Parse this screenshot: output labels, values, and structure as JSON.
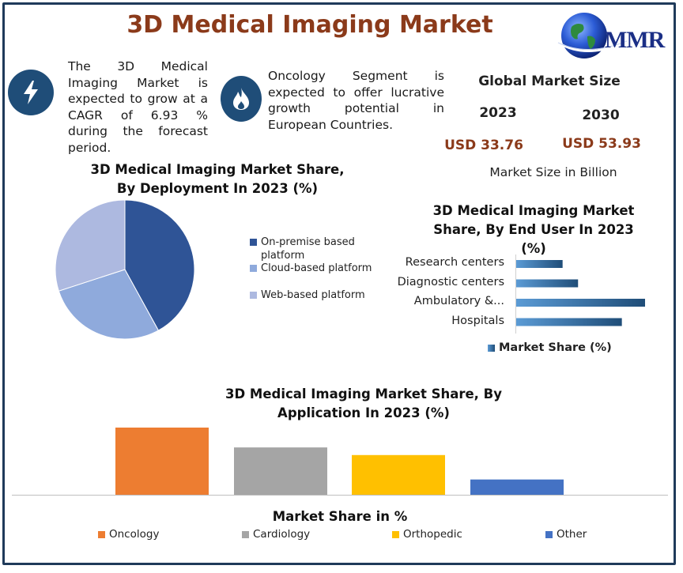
{
  "header": {
    "title": "3D Medical Imaging Market",
    "logo_text": "MMR"
  },
  "facts": [
    {
      "icon": "lightning-icon",
      "text": "The 3D Medical Imaging Market is expected to grow at a CAGR of 6.93 % during the forecast period."
    },
    {
      "icon": "flame-icon",
      "text": "Oncology Segment is expected to offer lucrative growth potential in European Countries."
    }
  ],
  "global_market": {
    "heading": "Global Market Size",
    "year_start": "2023",
    "year_end": "2030",
    "value_start": "USD 33.76",
    "value_end": "USD 53.93",
    "unit": "Market Size in Billion"
  },
  "colors": {
    "title": "#8b3a1a",
    "navy": "#1f4d78",
    "frame": "#1f3a5a"
  },
  "chart_data": [
    {
      "type": "pie",
      "title": "3D Medical Imaging Market Share, By Deployment In 2023 (%)",
      "categories": [
        "On-premise based platform",
        "Cloud-based platform",
        "Web-based platform"
      ],
      "values": [
        42,
        28,
        30
      ],
      "colors": [
        "#2f5496",
        "#8faadc",
        "#adb9e0"
      ],
      "legend": "right"
    },
    {
      "type": "bar",
      "orientation": "horizontal",
      "title": "3D Medical Imaging Market Share, By End User In 2023 (%)",
      "categories": [
        "Research centers",
        "Diagnostic centers",
        "Ambulatory &...",
        "Hospitals"
      ],
      "series": [
        {
          "name": "Market Share (%)",
          "values": [
            18,
            24,
            50,
            41
          ]
        }
      ],
      "xlim": [
        0,
        50
      ],
      "legend": "bottom"
    },
    {
      "type": "bar",
      "title": "3D Medical Imaging Market Share, By Application In 2023 (%)",
      "categories": [
        "Oncology",
        "Cardiology",
        "Orthopedic",
        "Other"
      ],
      "values": [
        44,
        31,
        26,
        10
      ],
      "colors": [
        "#ed7d31",
        "#a5a5a5",
        "#ffc000",
        "#4472c4"
      ],
      "ylabel": "Market Share in %",
      "ylim": [
        0,
        44
      ],
      "legend": "bottom"
    }
  ]
}
